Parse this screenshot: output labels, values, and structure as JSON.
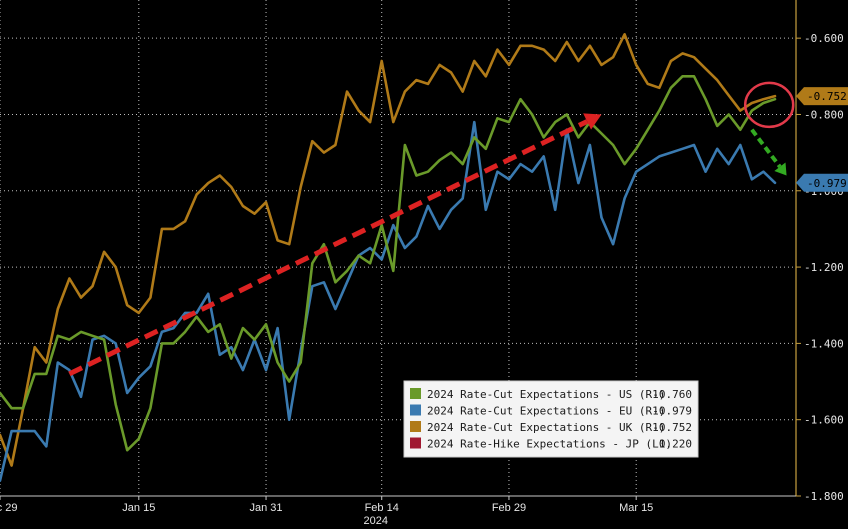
{
  "chart_data": {
    "type": "line",
    "title": "",
    "xlabel": "2024",
    "ylabel": "",
    "x_tick_labels": [
      "Dec 29",
      "Jan 15",
      "Jan 31",
      "Feb 14",
      "Feb 29",
      "Mar 15"
    ],
    "year_label": "2024",
    "y_axis_right": {
      "ticks": [
        -0.6,
        -0.8,
        -1.0,
        -1.2,
        -1.4,
        -1.6,
        -1.8
      ],
      "tick_labels": [
        "-0.600",
        "-0.800",
        "-1.000",
        "-1.200",
        "-1.400",
        "-1.600",
        "-1.800"
      ],
      "range": [
        -1.8,
        -0.5
      ]
    },
    "grid": true,
    "legend_position": "bottom-right",
    "series": [
      {
        "name": "2024 Rate-Cut Expectations - US (R1)",
        "last_value": "-0.760",
        "color": "#6a9a2a",
        "values": [
          -1.53,
          -1.57,
          -1.57,
          -1.48,
          -1.48,
          -1.38,
          -1.39,
          -1.37,
          -1.38,
          -1.39,
          -1.56,
          -1.68,
          -1.65,
          -1.57,
          -1.4,
          -1.4,
          -1.37,
          -1.33,
          -1.37,
          -1.35,
          -1.44,
          -1.36,
          -1.39,
          -1.35,
          -1.45,
          -1.5,
          -1.45,
          -1.19,
          -1.14,
          -1.24,
          -1.21,
          -1.17,
          -1.19,
          -1.09,
          -1.21,
          -0.88,
          -0.96,
          -0.95,
          -0.92,
          -0.9,
          -0.93,
          -0.86,
          -0.89,
          -0.81,
          -0.82,
          -0.76,
          -0.8,
          -0.86,
          -0.82,
          -0.8,
          -0.86,
          -0.82,
          -0.85,
          -0.88,
          -0.93,
          -0.89,
          -0.84,
          -0.79,
          -0.73,
          -0.7,
          -0.7,
          -0.76,
          -0.83,
          -0.8,
          -0.84,
          -0.79,
          -0.77,
          -0.76
        ]
      },
      {
        "name": "2024 Rate-Cut Expectations - EU (R1)",
        "last_value": "-0.979",
        "color": "#3a7ab0",
        "values": [
          -1.76,
          -1.63,
          -1.63,
          -1.63,
          -1.67,
          -1.45,
          -1.47,
          -1.54,
          -1.39,
          -1.38,
          -1.4,
          -1.53,
          -1.49,
          -1.46,
          -1.37,
          -1.36,
          -1.32,
          -1.32,
          -1.27,
          -1.43,
          -1.41,
          -1.47,
          -1.39,
          -1.47,
          -1.36,
          -1.6,
          -1.42,
          -1.25,
          -1.24,
          -1.31,
          -1.24,
          -1.17,
          -1.15,
          -1.18,
          -1.09,
          -1.15,
          -1.12,
          -1.04,
          -1.1,
          -1.05,
          -1.02,
          -0.82,
          -1.05,
          -0.95,
          -0.97,
          -0.93,
          -0.95,
          -0.91,
          -1.05,
          -0.84,
          -0.98,
          -0.88,
          -1.07,
          -1.14,
          -1.02,
          -0.95,
          -0.93,
          -0.91,
          -0.9,
          -0.89,
          -0.88,
          -0.95,
          -0.89,
          -0.93,
          -0.88,
          -0.97,
          -0.95,
          -0.979
        ]
      },
      {
        "name": "2024 Rate-Cut Expectations - UK (R1)",
        "last_value": "-0.752",
        "color": "#b07a18",
        "values": [
          -1.64,
          -1.72,
          -1.57,
          -1.41,
          -1.45,
          -1.31,
          -1.23,
          -1.28,
          -1.25,
          -1.16,
          -1.2,
          -1.3,
          -1.32,
          -1.28,
          -1.1,
          -1.1,
          -1.08,
          -1.01,
          -0.98,
          -0.96,
          -0.99,
          -1.04,
          -1.06,
          -1.03,
          -1.13,
          -1.14,
          -0.99,
          -0.87,
          -0.9,
          -0.88,
          -0.74,
          -0.79,
          -0.82,
          -0.66,
          -0.82,
          -0.74,
          -0.71,
          -0.72,
          -0.67,
          -0.69,
          -0.74,
          -0.66,
          -0.7,
          -0.63,
          -0.67,
          -0.62,
          -0.62,
          -0.63,
          -0.66,
          -0.61,
          -0.66,
          -0.62,
          -0.67,
          -0.65,
          -0.59,
          -0.67,
          -0.72,
          -0.73,
          -0.66,
          -0.64,
          -0.65,
          -0.68,
          -0.71,
          -0.75,
          -0.79,
          -0.77,
          -0.76,
          -0.752
        ]
      },
      {
        "name": "2024 Rate-Hike Expectations - JP (L1)",
        "last_value": "0.220",
        "color": "#a01830",
        "values": []
      }
    ],
    "annotations": {
      "trend_arrow": {
        "x_start": 6,
        "y_start": -1.48,
        "x_end": 52,
        "y_end": -0.8,
        "color": "#dd2222"
      },
      "down_arrow": {
        "x_start": 65,
        "y_start": -0.84,
        "x_end": 68,
        "y_end": -0.96,
        "color": "#33aa22"
      },
      "circle": {
        "x": 66.5,
        "y": -0.775,
        "color": "#e23a4a"
      }
    },
    "badges": [
      {
        "label": "-0.752",
        "value": -0.752,
        "color": "#b07a18"
      },
      {
        "label": "-0.979",
        "value": -0.979,
        "color": "#3a7ab0"
      }
    ]
  }
}
